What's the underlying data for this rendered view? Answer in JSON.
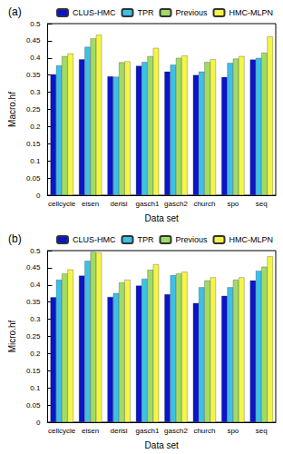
{
  "chart_data": [
    {
      "type": "bar",
      "title": "(a)",
      "x_label": "Data set",
      "y_label": "Macro.hf",
      "categories": [
        "cellcycle",
        "eisen",
        "derisi",
        "gasch1",
        "gasch2",
        "church",
        "spo",
        "seq"
      ],
      "series": [
        {
          "name": "CLUS-HMC",
          "color": "#0a14c8",
          "values": [
            0.352,
            0.396,
            0.346,
            0.377,
            0.36,
            0.35,
            0.344,
            0.395
          ]
        },
        {
          "name": "TPR",
          "color": "#3cc0e8",
          "values": [
            0.378,
            0.432,
            0.345,
            0.388,
            0.38,
            0.36,
            0.385,
            0.4
          ]
        },
        {
          "name": "Previous",
          "color": "#a0dc64",
          "values": [
            0.405,
            0.457,
            0.387,
            0.405,
            0.4,
            0.388,
            0.398,
            0.415
          ]
        },
        {
          "name": "HMC-MLPN",
          "color": "#f5f546",
          "values": [
            0.413,
            0.467,
            0.39,
            0.429,
            0.407,
            0.396,
            0.405,
            0.462
          ]
        }
      ],
      "ylim": [
        0,
        0.5
      ],
      "yticks": [
        0,
        0.05,
        0.1,
        0.15,
        0.2,
        0.25,
        0.3,
        0.35,
        0.4,
        0.45,
        0.5
      ],
      "grid": false,
      "legend": "top right"
    },
    {
      "type": "bar",
      "title": "(b)",
      "x_label": "Data set",
      "y_label": "Micro.hf",
      "categories": [
        "cellcycle",
        "eisen",
        "derisi",
        "gasch1",
        "gasch2",
        "church",
        "spo",
        "seq"
      ],
      "series": [
        {
          "name": "CLUS-HMC",
          "color": "#0a14c8",
          "values": [
            0.364,
            0.427,
            0.365,
            0.398,
            0.373,
            0.347,
            0.368,
            0.413
          ]
        },
        {
          "name": "TPR",
          "color": "#3cc0e8",
          "values": [
            0.415,
            0.47,
            0.376,
            0.418,
            0.428,
            0.393,
            0.393,
            0.441
          ]
        },
        {
          "name": "Previous",
          "color": "#a0dc64",
          "values": [
            0.433,
            0.496,
            0.407,
            0.444,
            0.433,
            0.413,
            0.415,
            0.453
          ]
        },
        {
          "name": "HMC-MLPN",
          "color": "#f5f546",
          "values": [
            0.445,
            0.494,
            0.415,
            0.46,
            0.438,
            0.422,
            0.422,
            0.483
          ]
        }
      ],
      "ylim": [
        0,
        0.5
      ],
      "yticks": [
        0,
        0.05,
        0.1,
        0.15,
        0.2,
        0.25,
        0.3,
        0.35,
        0.4,
        0.45,
        0.5
      ],
      "grid": false,
      "legend": "top right"
    }
  ]
}
